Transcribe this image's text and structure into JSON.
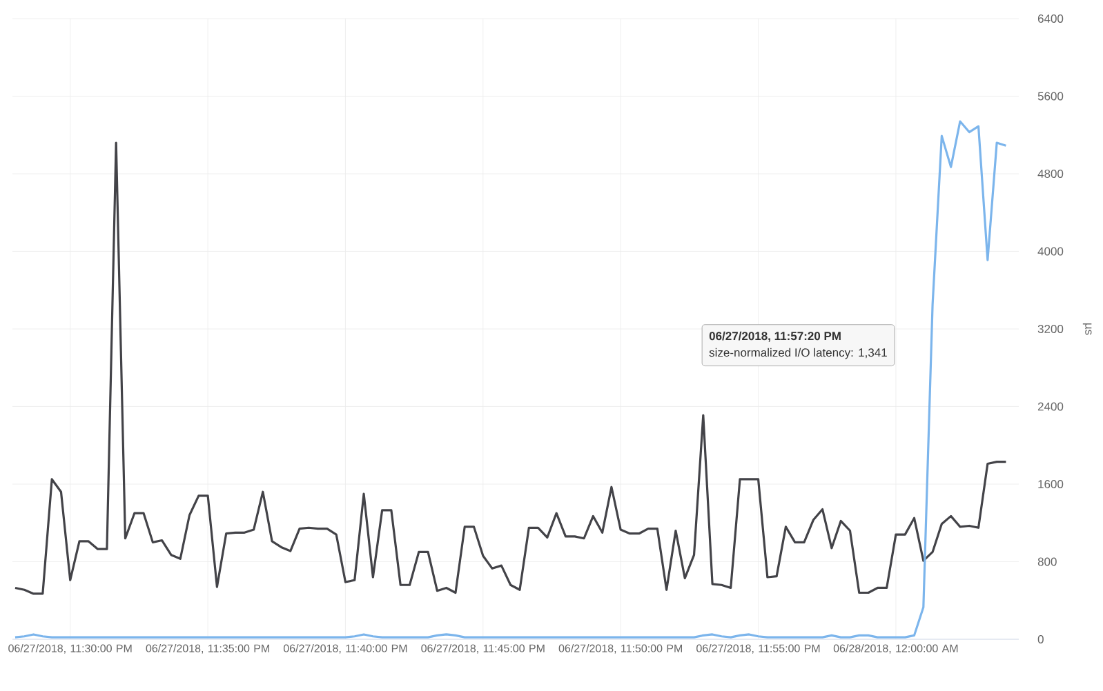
{
  "chart_data": {
    "type": "line",
    "ylabel": "µs",
    "categories": [
      null,
      null,
      null,
      null,
      null,
      null,
      "06/27/2018, 11:30:00 PM",
      null,
      null,
      null,
      null,
      null,
      null,
      null,
      null,
      null,
      null,
      null,
      null,
      null,
      null,
      "06/27/2018, 11:35:00 PM",
      null,
      null,
      null,
      null,
      null,
      null,
      null,
      null,
      null,
      null,
      null,
      null,
      null,
      null,
      "06/27/2018, 11:40:00 PM",
      null,
      null,
      null,
      null,
      null,
      null,
      null,
      null,
      null,
      null,
      null,
      null,
      null,
      null,
      "06/27/2018, 11:45:00 PM",
      null,
      null,
      null,
      null,
      null,
      null,
      null,
      null,
      null,
      null,
      null,
      null,
      null,
      null,
      "06/27/2018, 11:50:00 PM",
      null,
      null,
      null,
      null,
      null,
      null,
      null,
      null,
      null,
      null,
      null,
      null,
      null,
      null,
      "06/27/2018, 11:55:00 PM",
      null,
      null,
      null,
      null,
      null,
      null,
      null,
      null,
      null,
      null,
      null,
      null,
      null,
      null,
      "06/28/2018, 12:00:00 AM",
      null,
      null,
      null,
      null,
      null,
      null,
      null,
      null,
      null,
      null,
      null,
      null
    ],
    "ylim": [
      0,
      6400
    ],
    "yticks": [
      0,
      800,
      1600,
      2400,
      3200,
      4000,
      4800,
      5600,
      6400
    ],
    "grid": true,
    "series": [
      {
        "color": "#434348",
        "values": [
          530,
          510,
          470,
          470,
          1650,
          1520,
          610,
          1010,
          1010,
          930,
          930,
          5120,
          1040,
          1300,
          1300,
          1000,
          1020,
          870,
          830,
          1280,
          1480,
          1480,
          540,
          1090,
          1100,
          1100,
          1130,
          1520,
          1010,
          950,
          910,
          1140,
          1150,
          1140,
          1140,
          1080,
          590,
          610,
          1500,
          640,
          1330,
          1330,
          560,
          560,
          900,
          900,
          500,
          530,
          480,
          1160,
          1160,
          860,
          730,
          760,
          560,
          510,
          1150,
          1150,
          1050,
          1300,
          1060,
          1060,
          1040,
          1270,
          1100,
          1570,
          1130,
          1090,
          1090,
          1140,
          1140,
          510,
          1120,
          630,
          870,
          2310,
          570,
          560,
          530,
          1650,
          1650,
          1650,
          640,
          650,
          1160,
          1000,
          1000,
          1230,
          1340,
          940,
          1220,
          1120,
          480,
          480,
          530,
          530,
          1080,
          1080,
          1250,
          810,
          900,
          1190,
          1270,
          1160,
          1170,
          1150,
          1810,
          1830,
          1830
        ]
      },
      {
        "color": "#7cb5ec",
        "values": [
          20,
          30,
          50,
          30,
          20,
          20,
          20,
          20,
          20,
          20,
          20,
          20,
          20,
          20,
          20,
          20,
          20,
          20,
          20,
          20,
          20,
          20,
          20,
          20,
          20,
          20,
          20,
          20,
          20,
          20,
          20,
          20,
          20,
          20,
          20,
          20,
          20,
          30,
          50,
          30,
          20,
          20,
          20,
          20,
          20,
          20,
          40,
          50,
          40,
          20,
          20,
          20,
          20,
          20,
          20,
          20,
          20,
          20,
          20,
          20,
          20,
          20,
          20,
          20,
          20,
          20,
          20,
          20,
          20,
          20,
          20,
          20,
          20,
          20,
          20,
          40,
          50,
          30,
          20,
          40,
          50,
          30,
          20,
          20,
          20,
          20,
          20,
          20,
          20,
          40,
          20,
          20,
          40,
          40,
          20,
          20,
          20,
          20,
          40,
          330,
          3450,
          5190,
          4870,
          5340,
          5230,
          5290,
          3910,
          5120,
          5090
        ]
      }
    ],
    "annotations": [
      "06/27/2018, 11:57:20 PM",
      "size-normalized I/O latency: 1,341"
    ]
  }
}
